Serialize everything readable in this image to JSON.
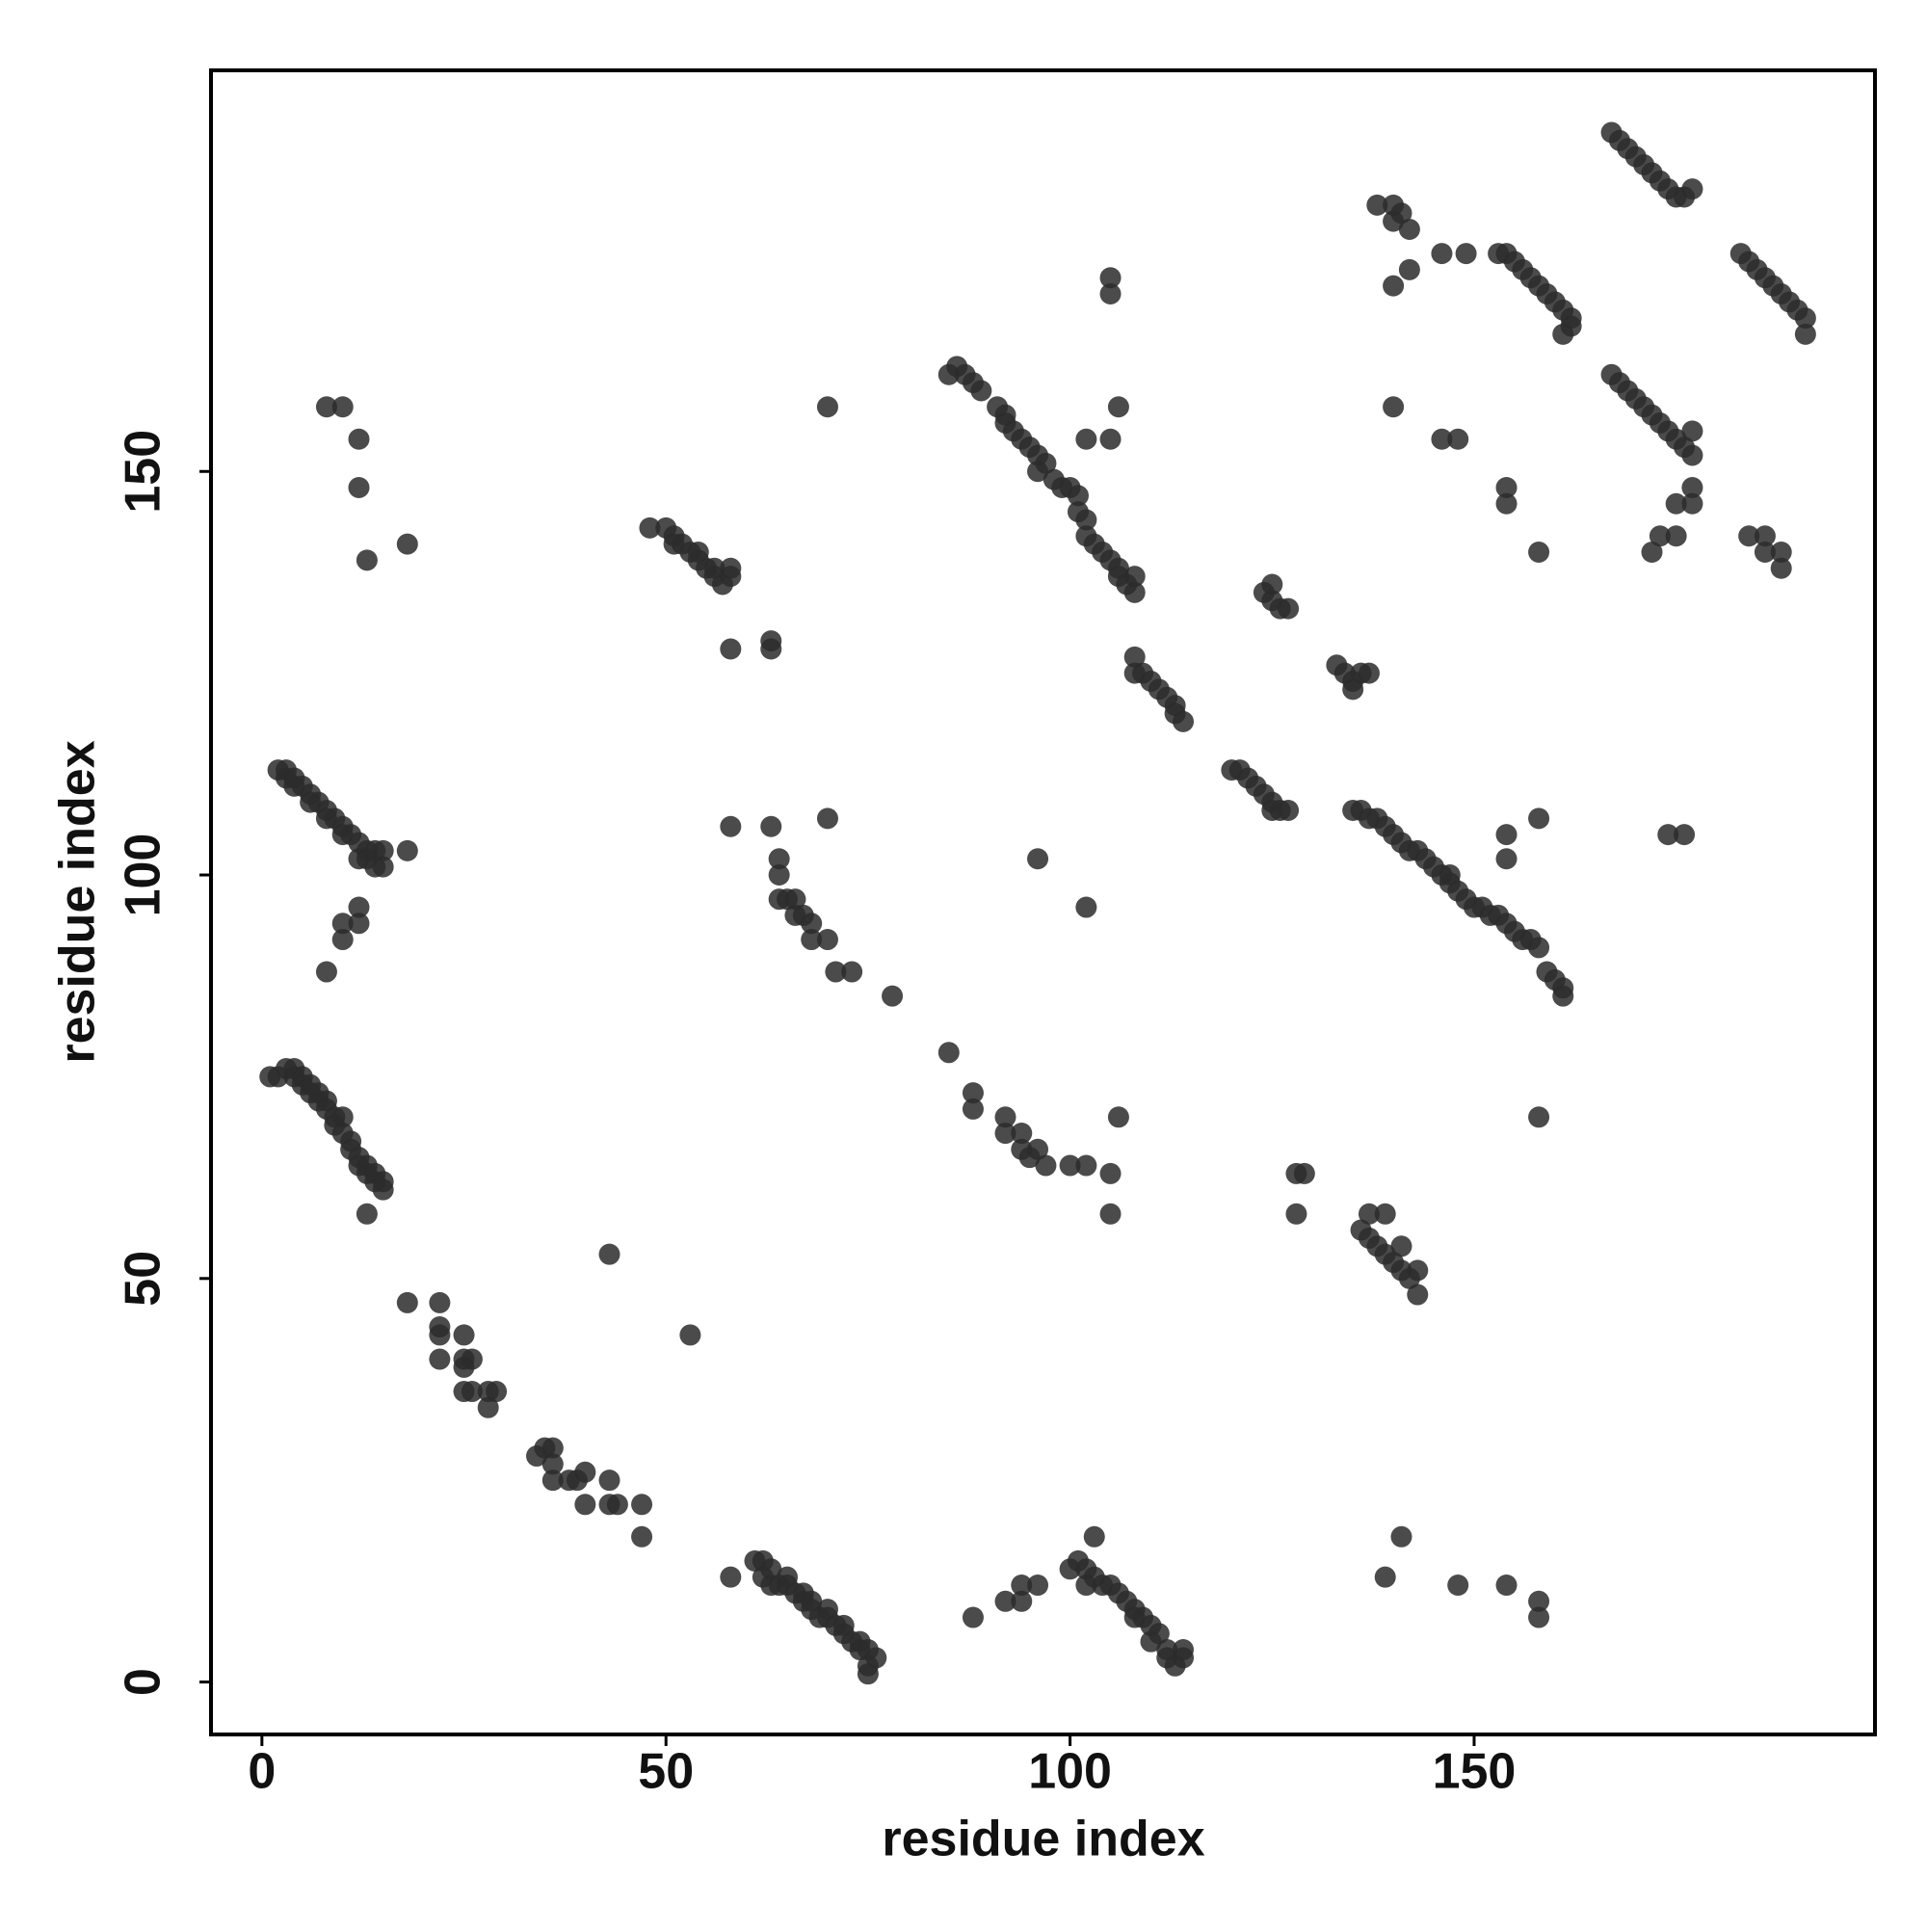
{
  "chart_data": {
    "type": "scatter",
    "x_label": "residue index",
    "y_label": "residue index",
    "color": "#2b2b2b",
    "xlim": [
      -6.3,
      199.6
    ],
    "ylim": [
      -6.5,
      199.7
    ],
    "xticks": [
      0,
      50,
      100,
      150
    ],
    "yticks": [
      0,
      50,
      100,
      150
    ],
    "x": [
      1,
      2,
      3,
      4,
      4,
      5,
      5,
      6,
      6,
      7,
      7,
      8,
      8,
      9,
      9,
      10,
      10,
      11,
      11,
      12,
      12,
      13,
      13,
      14,
      14,
      15,
      15,
      13,
      2,
      3,
      3,
      4,
      4,
      5,
      6,
      6,
      7,
      8,
      8,
      9,
      10,
      10,
      11,
      12,
      12,
      13,
      13,
      14,
      14,
      15,
      15,
      18,
      12,
      12,
      10,
      10,
      8,
      8,
      10,
      12,
      12,
      13,
      18,
      18,
      22,
      22,
      22,
      22,
      25,
      25,
      25,
      26,
      25,
      26,
      28,
      28,
      29,
      34,
      35,
      36,
      36,
      36,
      38,
      39,
      40,
      40,
      43,
      43,
      44,
      47,
      47,
      43,
      53,
      58,
      61,
      62,
      62,
      63,
      63,
      64,
      65,
      65,
      66,
      67,
      67,
      68,
      68,
      69,
      70,
      70,
      71,
      72,
      72,
      73,
      74,
      74,
      75,
      75,
      76,
      75,
      88,
      92,
      94,
      94,
      96,
      100,
      101,
      102,
      102,
      103,
      103,
      104,
      105,
      106,
      107,
      108,
      108,
      109,
      110,
      110,
      111,
      112,
      112,
      113,
      114,
      114,
      139,
      141,
      148,
      154,
      158,
      158,
      48,
      50,
      51,
      51,
      52,
      53,
      54,
      54,
      55,
      56,
      56,
      57,
      58,
      58,
      58,
      63,
      63,
      70,
      58,
      63,
      70,
      64,
      64,
      64,
      65,
      66,
      66,
      67,
      68,
      68,
      70,
      71,
      73,
      78,
      85,
      88,
      88,
      92,
      92,
      94,
      94,
      95,
      96,
      97,
      100,
      102,
      105,
      105,
      106,
      96,
      102,
      85,
      86,
      87,
      88,
      89,
      91,
      92,
      92,
      93,
      94,
      95,
      96,
      96,
      97,
      98,
      99,
      100,
      101,
      101,
      102,
      102,
      103,
      104,
      105,
      106,
      106,
      107,
      108,
      108,
      102,
      105,
      106,
      105,
      105,
      108,
      108,
      109,
      110,
      111,
      112,
      113,
      113,
      114,
      120,
      121,
      122,
      123,
      124,
      125,
      125,
      126,
      127,
      124,
      125,
      125,
      126,
      127,
      128,
      129,
      128,
      133,
      134,
      135,
      135,
      136,
      137,
      135,
      136,
      137,
      138,
      139,
      140,
      141,
      142,
      143,
      144,
      145,
      146,
      147,
      147,
      148,
      149,
      150,
      151,
      152,
      153,
      154,
      155,
      156,
      157,
      158,
      159,
      160,
      161,
      161,
      154,
      154,
      158,
      158,
      136,
      137,
      137,
      138,
      139,
      139,
      140,
      141,
      141,
      142,
      143,
      143,
      138,
      140,
      140,
      141,
      142,
      140,
      142,
      146,
      149,
      140,
      146,
      148,
      153,
      154,
      155,
      156,
      157,
      158,
      159,
      160,
      161,
      162,
      162,
      161,
      154,
      154,
      158,
      167,
      168,
      169,
      170,
      171,
      172,
      173,
      174,
      175,
      176,
      177,
      167,
      168,
      169,
      170,
      171,
      172,
      173,
      174,
      175,
      176,
      177,
      177,
      177,
      175,
      177,
      173,
      172,
      175,
      174,
      176,
      183,
      184,
      185,
      186,
      187,
      188,
      189,
      190,
      191,
      191,
      184,
      186,
      186,
      188,
      188
    ],
    "values": [
      75,
      75,
      76,
      76,
      75,
      75,
      74,
      74,
      73,
      73,
      72,
      72,
      71,
      70,
      69,
      70,
      68,
      67,
      66,
      65,
      64,
      63,
      64,
      62,
      63,
      61,
      62,
      58,
      113,
      113,
      112,
      112,
      111,
      111,
      110,
      109,
      109,
      108,
      107,
      107,
      106,
      105,
      105,
      104,
      102,
      103,
      102,
      101,
      103,
      101,
      103,
      103,
      96,
      94,
      94,
      92,
      88,
      158,
      158,
      154,
      148,
      139,
      141,
      47,
      47,
      44,
      43,
      40,
      43,
      40,
      39,
      40,
      36,
      36,
      36,
      34,
      36,
      28,
      29,
      29,
      27,
      25,
      25,
      25,
      26,
      22,
      25,
      22,
      22,
      22,
      18,
      53,
      43,
      13,
      15,
      15,
      13,
      14,
      12,
      12,
      13,
      12,
      11,
      11,
      10,
      10,
      9,
      8,
      9,
      8,
      7,
      7,
      6,
      5,
      5,
      4,
      4,
      2,
      3,
      1,
      8,
      10,
      10,
      12,
      12,
      14,
      15,
      14,
      12,
      13,
      18,
      12,
      12,
      11,
      10,
      9,
      8,
      8,
      7,
      5,
      6,
      4,
      3,
      2,
      3,
      4,
      13,
      18,
      12,
      12,
      10,
      8,
      143,
      143,
      142,
      141,
      141,
      140,
      140,
      139,
      138,
      138,
      137,
      136,
      138,
      137,
      128,
      129,
      128,
      158,
      106,
      106,
      107,
      102,
      100,
      97,
      97,
      97,
      95,
      95,
      94,
      92,
      92,
      88,
      88,
      85,
      78,
      73,
      71,
      70,
      68,
      68,
      66,
      65,
      66,
      64,
      64,
      64,
      63,
      58,
      70,
      102,
      96,
      162,
      163,
      162,
      161,
      160,
      158,
      157,
      156,
      155,
      154,
      153,
      152,
      150,
      151,
      149,
      148,
      148,
      147,
      145,
      144,
      142,
      141,
      140,
      139,
      138,
      137,
      136,
      135,
      137,
      154,
      154,
      158,
      172,
      174,
      127,
      125,
      125,
      124,
      123,
      122,
      121,
      120,
      119,
      113,
      113,
      112,
      111,
      110,
      109,
      108,
      108,
      108,
      135,
      134,
      136,
      133,
      133,
      63,
      63,
      58,
      126,
      125,
      124,
      123,
      125,
      125,
      108,
      108,
      107,
      107,
      106,
      105,
      104,
      103,
      103,
      102,
      101,
      100,
      100,
      99,
      98,
      97,
      96,
      96,
      95,
      95,
      94,
      93,
      92,
      92,
      91,
      88,
      87,
      86,
      85,
      105,
      102,
      107,
      70,
      56,
      55,
      58,
      54,
      53,
      58,
      52,
      54,
      51,
      50,
      51,
      48,
      183,
      183,
      181,
      182,
      180,
      173,
      175,
      177,
      177,
      158,
      154,
      154,
      177,
      177,
      176,
      175,
      174,
      173,
      172,
      171,
      170,
      169,
      168,
      167,
      148,
      146,
      140,
      192,
      191,
      190,
      189,
      188,
      187,
      186,
      185,
      184,
      184,
      185,
      162,
      161,
      160,
      159,
      158,
      157,
      156,
      155,
      154,
      153,
      152,
      155,
      148,
      146,
      146,
      142,
      140,
      142,
      105,
      105,
      177,
      176,
      175,
      174,
      173,
      172,
      171,
      170,
      169,
      167,
      142,
      142,
      140,
      140,
      138
    ]
  }
}
